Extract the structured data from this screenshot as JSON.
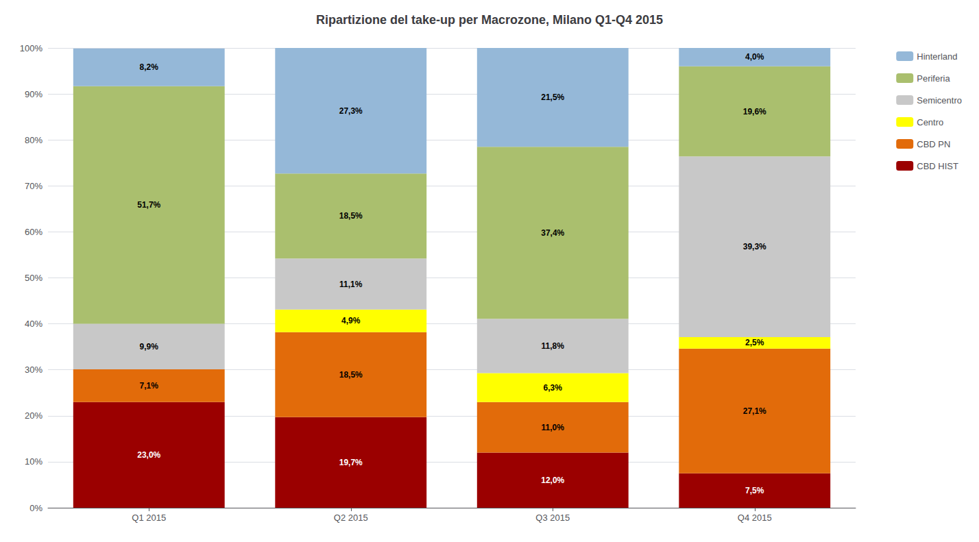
{
  "chart_data": {
    "type": "bar",
    "title": "Ripartizione del take-up per Macrozone, Milano Q1-Q4 2015",
    "categories": [
      "Q1 2015",
      "Q2 2015",
      "Q3 2015",
      "Q4 2015"
    ],
    "series": [
      {
        "name": "CBD HIST",
        "color": "#9B0000",
        "values": [
          23.0,
          19.7,
          12.0,
          7.5
        ],
        "value_labels": [
          "23,0%",
          "19,7%",
          "12,0%",
          "7,5%"
        ]
      },
      {
        "name": "CBD PN",
        "color": "#E26B0A",
        "values": [
          7.1,
          18.5,
          11.0,
          27.1
        ],
        "value_labels": [
          "7,1%",
          "18,5%",
          "11,0%",
          "27,1%"
        ]
      },
      {
        "name": "Centro",
        "color": "#FFFF00",
        "values": [
          0.0,
          4.9,
          6.3,
          2.5
        ],
        "value_labels": [
          null,
          "4,9%",
          "6,3%",
          "2,5%"
        ]
      },
      {
        "name": "Semicentro",
        "color": "#C8C8C8",
        "values": [
          9.9,
          11.1,
          11.8,
          39.3
        ],
        "value_labels": [
          "9,9%",
          "11,1%",
          "11,8%",
          "39,3%"
        ]
      },
      {
        "name": "Periferia",
        "color": "#AABF6E",
        "values": [
          51.7,
          18.5,
          37.4,
          19.6
        ],
        "value_labels": [
          "51,7%",
          "18,5%",
          "37,4%",
          "19,6%"
        ]
      },
      {
        "name": "Hinterland",
        "color": "#95B8D8",
        "values": [
          8.2,
          27.3,
          21.5,
          4.0
        ],
        "value_labels": [
          "8,2%",
          "27,3%",
          "21,5%",
          "4,0%"
        ]
      }
    ],
    "stacked": true,
    "data_labels": true,
    "ylim": [
      0,
      100
    ],
    "yticks": [
      {
        "value": 0,
        "label": "0%"
      },
      {
        "value": 10,
        "label": "10%"
      },
      {
        "value": 20,
        "label": "20%"
      },
      {
        "value": 30,
        "label": "30%"
      },
      {
        "value": 40,
        "label": "40%"
      },
      {
        "value": 50,
        "label": "50%"
      },
      {
        "value": 60,
        "label": "60%"
      },
      {
        "value": 70,
        "label": "70%"
      },
      {
        "value": 80,
        "label": "80%"
      },
      {
        "value": 90,
        "label": "90%"
      },
      {
        "value": 100,
        "label": "100%"
      }
    ],
    "grid": true,
    "legend": "right"
  }
}
